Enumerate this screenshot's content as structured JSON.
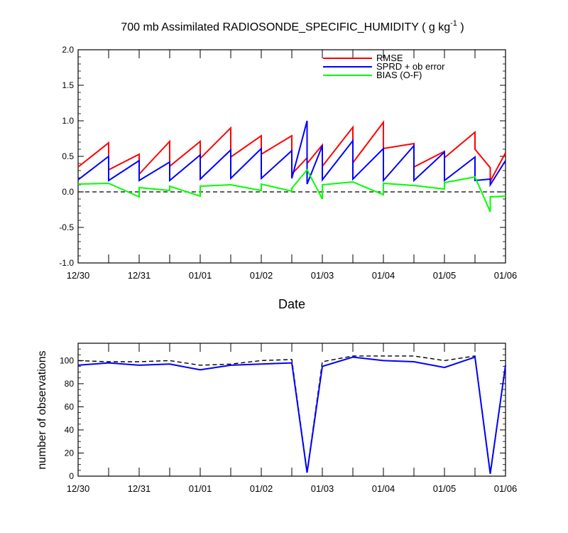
{
  "chart_data": [
    {
      "type": "line",
      "title_main": "700 mb Assimilated RADIOSONDE_SPECIFIC_HUMIDITY ( g kg",
      "title_sup": "-1",
      "title_end": " )",
      "xlabel": "Date",
      "ylabel": "",
      "xlim": [
        0,
        7.0
      ],
      "ylim": [
        -1.0,
        2.0
      ],
      "x_tick_labels": [
        "12/30",
        "12/31",
        "01/01",
        "01/02",
        "01/03",
        "01/04",
        "01/05",
        "01/06"
      ],
      "x_tick_values": [
        0,
        1,
        2,
        3,
        4,
        5,
        6,
        7
      ],
      "y_tick_labels": [
        "-1.0",
        "-0.5",
        "0.0",
        "0.5",
        "1.0",
        "1.5",
        "2.0"
      ],
      "y_tick_values": [
        -1.0,
        -0.5,
        0.0,
        0.5,
        1.0,
        1.5,
        2.0
      ],
      "reference_line": 0.0,
      "legend_position": "top-right",
      "series": [
        {
          "name": "RMSE",
          "color": "#ff0000",
          "x": [
            0,
            0.5,
            0.5,
            1.0,
            1.0,
            1.5,
            1.5,
            2.0,
            2.0,
            2.5,
            2.5,
            3.0,
            3.0,
            3.5,
            3.5,
            3.75,
            3.75,
            4.0,
            4.0,
            4.5,
            4.5,
            5.0,
            5.0,
            5.5,
            5.5,
            6.0,
            6.0,
            6.5,
            6.5,
            6.75,
            6.75,
            7.0
          ],
          "y": [
            0.35,
            0.69,
            0.31,
            0.53,
            0.25,
            0.71,
            0.36,
            0.71,
            0.47,
            0.9,
            0.49,
            0.79,
            0.53,
            0.79,
            0.25,
            0.48,
            0.4,
            0.66,
            0.36,
            0.91,
            0.41,
            0.98,
            0.61,
            0.68,
            0.35,
            0.57,
            0.48,
            0.84,
            0.6,
            0.34,
            0.15,
            0.55
          ]
        },
        {
          "name": "SPRD + ob error",
          "color": "#0000ff",
          "x": [
            0,
            0.5,
            0.5,
            1.0,
            1.0,
            1.5,
            1.5,
            2.0,
            2.0,
            2.5,
            2.5,
            3.0,
            3.0,
            3.5,
            3.5,
            3.75,
            3.75,
            4.0,
            4.0,
            4.5,
            4.5,
            5.0,
            5.0,
            5.5,
            5.5,
            6.0,
            6.0,
            6.5,
            6.5,
            6.75,
            6.75,
            7.0
          ],
          "y": [
            0.17,
            0.5,
            0.16,
            0.44,
            0.16,
            0.42,
            0.16,
            0.52,
            0.18,
            0.59,
            0.19,
            0.61,
            0.19,
            0.58,
            0.19,
            1.0,
            0.11,
            0.65,
            0.17,
            0.72,
            0.18,
            0.61,
            0.16,
            0.65,
            0.16,
            0.56,
            0.16,
            0.49,
            0.16,
            0.18,
            0.1,
            0.44
          ]
        },
        {
          "name": "BIAS (O-F)",
          "color": "#00ff00",
          "x": [
            0,
            0.5,
            1.0,
            1.0,
            1.5,
            1.5,
            2.0,
            2.0,
            2.5,
            3.0,
            3.0,
            3.5,
            3.5,
            3.75,
            4.0,
            4.0,
            4.5,
            5.0,
            5.0,
            5.5,
            6.0,
            6.0,
            6.5,
            6.75,
            6.75,
            7.0
          ],
          "y": [
            0.11,
            0.12,
            -0.07,
            0.06,
            0.02,
            0.08,
            -0.06,
            0.08,
            0.1,
            0.02,
            0.11,
            0.01,
            0.05,
            0.31,
            -0.1,
            0.1,
            0.14,
            -0.04,
            0.12,
            0.09,
            0.04,
            0.13,
            0.21,
            -0.28,
            -0.07,
            -0.06
          ]
        }
      ]
    },
    {
      "type": "line",
      "title": "",
      "xlabel": "",
      "ylabel": "number of observations",
      "xlim": [
        0,
        7.0
      ],
      "ylim": [
        0,
        115
      ],
      "x_tick_labels": [
        "12/30",
        "12/31",
        "01/01",
        "01/02",
        "01/03",
        "01/04",
        "01/05",
        "01/06"
      ],
      "x_tick_values": [
        0,
        1,
        2,
        3,
        4,
        5,
        6,
        7
      ],
      "y_tick_labels": [
        "0",
        "20",
        "40",
        "60",
        "80",
        "100"
      ],
      "y_tick_values": [
        0,
        20,
        40,
        60,
        80,
        100
      ],
      "series": [
        {
          "style": "dashed",
          "color": "#000000",
          "x": [
            0,
            0.5,
            1.0,
            1.5,
            2.0,
            2.5,
            3.0,
            3.5,
            3.75,
            4.0,
            4.5,
            5.0,
            5.5,
            6.0,
            6.5,
            6.75,
            7.0
          ],
          "y": [
            100,
            99,
            99,
            100,
            96,
            97,
            100,
            101,
            4,
            99,
            104,
            104,
            104,
            100,
            104,
            3,
            96
          ]
        },
        {
          "style": "solid",
          "color": "#0000ff",
          "x": [
            0,
            0.5,
            1.0,
            1.5,
            2.0,
            2.5,
            3.0,
            3.5,
            3.75,
            4.0,
            4.5,
            5.0,
            5.5,
            6.0,
            6.5,
            6.75,
            7.0
          ],
          "y": [
            96,
            98,
            96,
            97,
            92,
            96,
            97,
            98,
            3,
            95,
            103,
            100,
            99,
            94,
            103,
            2,
            96
          ]
        }
      ]
    }
  ]
}
